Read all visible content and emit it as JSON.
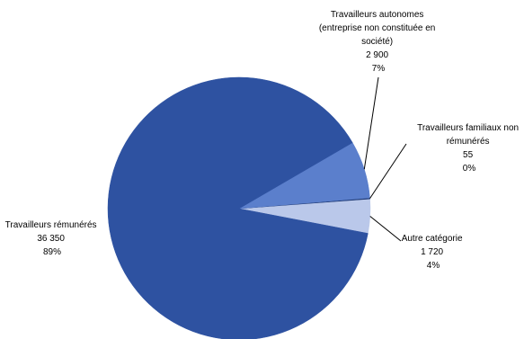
{
  "chart_data": {
    "type": "pie",
    "slices": [
      {
        "key": "remuneres",
        "label_lines": [
          "Travailleurs rémunérés"
        ],
        "value": 36350,
        "value_label": "36 350",
        "percent_label": "89%",
        "color": "#2E52A1"
      },
      {
        "key": "autonomes",
        "label_lines": [
          "Travailleurs autonomes",
          "(entreprise non constituée en",
          "société)"
        ],
        "value": 2900,
        "value_label": "2 900",
        "percent_label": "7%",
        "color": "#5B7FCC"
      },
      {
        "key": "familiaux",
        "label_lines": [
          "Travailleurs familiaux non",
          "rémunérés"
        ],
        "value": 55,
        "value_label": "55",
        "percent_label": "0%",
        "color": "#1F3A75"
      },
      {
        "key": "autre",
        "label_lines": [
          "Autre catégorie"
        ],
        "value": 1720,
        "value_label": "1 720",
        "percent_label": "4%",
        "color": "#BAC8EA"
      }
    ]
  }
}
